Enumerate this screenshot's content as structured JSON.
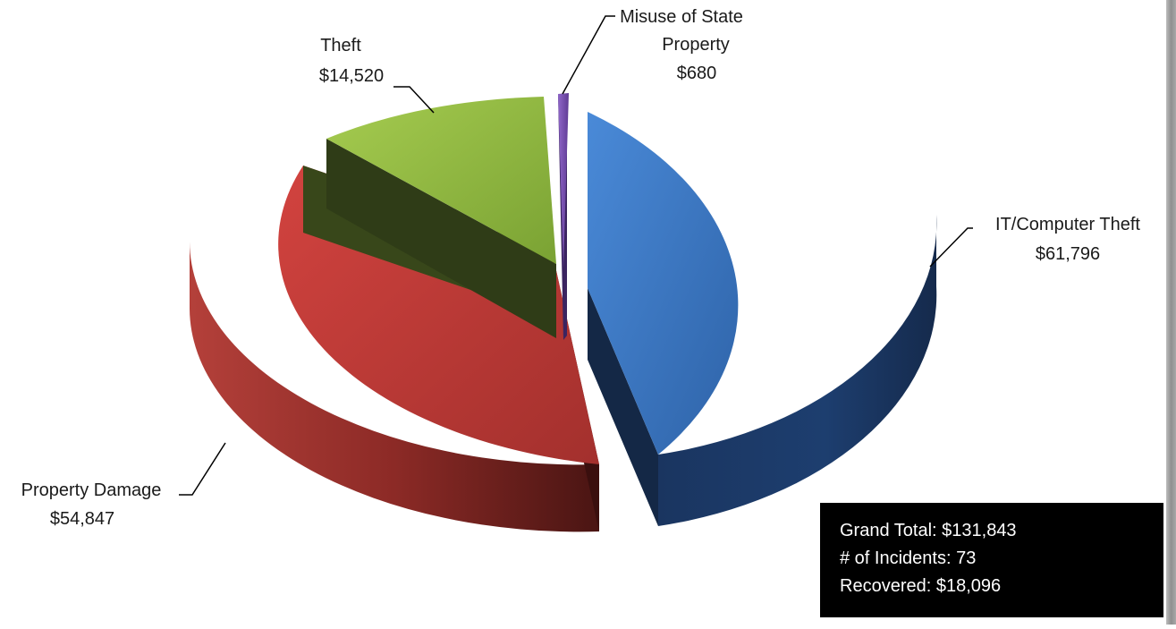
{
  "chart_data": {
    "type": "pie",
    "style": "3d-exploded",
    "slices": [
      {
        "label": "IT/Computer Theft",
        "value": 61796,
        "value_label": "$61,796",
        "color": "#3f7fce"
      },
      {
        "label": "Property Damage",
        "value": 54847,
        "value_label": "$54,847",
        "color": "#c73c3a"
      },
      {
        "label": "Theft",
        "value": 14520,
        "value_label": "$14,520",
        "color": "#93bd43"
      },
      {
        "label": "Misuse of State Property",
        "value": 680,
        "value_label": "$680",
        "color": "#7c52b6"
      }
    ],
    "labels": {
      "it_name": "IT/Computer Theft",
      "it_value": "$61,796",
      "pd_name": "Property Damage",
      "pd_value": "$54,847",
      "theft_name": "Theft",
      "theft_value": "$14,520",
      "misuse_line1": "Misuse of State",
      "misuse_line2": "Property",
      "misuse_value": "$680"
    }
  },
  "summary": {
    "grand_total": "Grand Total: $131,843",
    "incidents": "# of Incidents: 73",
    "recovered": "Recovered: $18,096"
  }
}
